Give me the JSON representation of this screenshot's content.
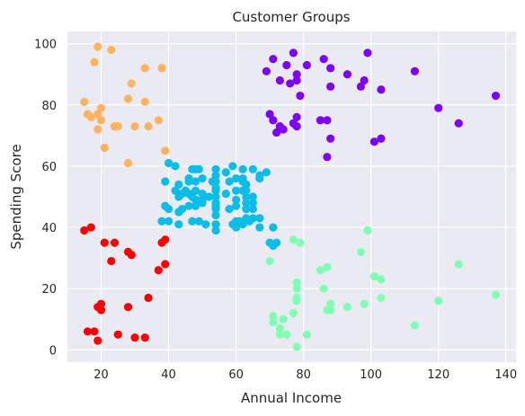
{
  "chart_data": {
    "type": "scatter",
    "title": "Customer Groups",
    "xlabel": "Annual Income",
    "ylabel": "Spending Score",
    "xlim": [
      10,
      143
    ],
    "ylim": [
      -4,
      104
    ],
    "xticks": [
      20,
      40,
      60,
      80,
      100,
      120,
      140
    ],
    "yticks": [
      0,
      20,
      40,
      60,
      80,
      100
    ],
    "grid": true,
    "background": "#eaeaf2",
    "clusters": [
      {
        "color": "#ffb360",
        "points": [
          [
            15,
            81
          ],
          [
            16,
            77
          ],
          [
            17,
            76
          ],
          [
            18,
            94
          ],
          [
            19,
            99
          ],
          [
            19,
            72
          ],
          [
            19,
            77
          ],
          [
            20,
            79
          ],
          [
            20,
            75
          ],
          [
            21,
            66
          ],
          [
            23,
            98
          ],
          [
            24,
            73
          ],
          [
            25,
            73
          ],
          [
            28,
            82
          ],
          [
            28,
            61
          ],
          [
            29,
            87
          ],
          [
            30,
            73
          ],
          [
            33,
            92
          ],
          [
            33,
            81
          ],
          [
            34,
            73
          ],
          [
            37,
            75
          ],
          [
            38,
            92
          ],
          [
            39,
            65
          ]
        ]
      },
      {
        "color": "#ff0000",
        "points": [
          [
            15,
            39
          ],
          [
            16,
            6
          ],
          [
            17,
            40
          ],
          [
            18,
            6
          ],
          [
            19,
            3
          ],
          [
            19,
            14
          ],
          [
            20,
            15
          ],
          [
            20,
            13
          ],
          [
            21,
            35
          ],
          [
            23,
            29
          ],
          [
            24,
            35
          ],
          [
            25,
            5
          ],
          [
            28,
            14
          ],
          [
            28,
            32
          ],
          [
            29,
            31
          ],
          [
            30,
            4
          ],
          [
            33,
            4
          ],
          [
            34,
            17
          ],
          [
            37,
            26
          ],
          [
            38,
            35
          ],
          [
            39,
            36
          ],
          [
            39,
            28
          ]
        ]
      },
      {
        "color": "#80ffb4",
        "points": [
          [
            70,
            29
          ],
          [
            71,
            11
          ],
          [
            71,
            9
          ],
          [
            73,
            5
          ],
          [
            73,
            7
          ],
          [
            74,
            10
          ],
          [
            75,
            5
          ],
          [
            77,
            12
          ],
          [
            77,
            36
          ],
          [
            78,
            1
          ],
          [
            78,
            22
          ],
          [
            78,
            20
          ],
          [
            78,
            17
          ],
          [
            78,
            16
          ],
          [
            79,
            35
          ],
          [
            81,
            5
          ],
          [
            85,
            26
          ],
          [
            86,
            20
          ],
          [
            87,
            27
          ],
          [
            87,
            13
          ],
          [
            88,
            15
          ],
          [
            88,
            13
          ],
          [
            93,
            14
          ],
          [
            97,
            32
          ],
          [
            98,
            15
          ],
          [
            99,
            39
          ],
          [
            101,
            24
          ],
          [
            103,
            17
          ],
          [
            103,
            23
          ],
          [
            113,
            8
          ],
          [
            120,
            16
          ],
          [
            126,
            28
          ],
          [
            137,
            18
          ]
        ]
      },
      {
        "color": "#8000ff",
        "points": [
          [
            69,
            91
          ],
          [
            70,
            77
          ],
          [
            71,
            95
          ],
          [
            71,
            75
          ],
          [
            72,
            71
          ],
          [
            73,
            88
          ],
          [
            73,
            73
          ],
          [
            74,
            72
          ],
          [
            75,
            93
          ],
          [
            76,
            87
          ],
          [
            77,
            97
          ],
          [
            77,
            74
          ],
          [
            78,
            90
          ],
          [
            78,
            76
          ],
          [
            78,
            88
          ],
          [
            78,
            73
          ],
          [
            79,
            83
          ],
          [
            81,
            93
          ],
          [
            85,
            75
          ],
          [
            86,
            95
          ],
          [
            87,
            75
          ],
          [
            87,
            63
          ],
          [
            88,
            92
          ],
          [
            88,
            86
          ],
          [
            88,
            69
          ],
          [
            93,
            90
          ],
          [
            97,
            86
          ],
          [
            98,
            88
          ],
          [
            99,
            97
          ],
          [
            101,
            68
          ],
          [
            103,
            85
          ],
          [
            103,
            69
          ],
          [
            113,
            91
          ],
          [
            120,
            79
          ],
          [
            126,
            74
          ],
          [
            137,
            83
          ]
        ]
      },
      {
        "color": "#0bbde7",
        "points": [
          [
            38,
            42
          ],
          [
            39,
            55
          ],
          [
            39,
            47
          ],
          [
            40,
            42
          ],
          [
            40,
            46
          ],
          [
            40,
            61
          ],
          [
            42,
            52
          ],
          [
            42,
            60
          ],
          [
            43,
            54
          ],
          [
            43,
            45
          ],
          [
            43,
            41
          ],
          [
            43,
            50
          ],
          [
            44,
            46
          ],
          [
            44,
            51
          ],
          [
            45,
            52
          ],
          [
            46,
            56
          ],
          [
            46,
            55
          ],
          [
            46,
            47
          ],
          [
            46,
            51
          ],
          [
            47,
            50
          ],
          [
            47,
            42
          ],
          [
            47,
            59
          ],
          [
            48,
            47
          ],
          [
            48,
            49
          ],
          [
            48,
            59
          ],
          [
            48,
            55
          ],
          [
            48,
            52
          ],
          [
            49,
            42
          ],
          [
            49,
            59
          ],
          [
            50,
            49
          ],
          [
            50,
            56
          ],
          [
            50,
            51
          ],
          [
            50,
            48
          ],
          [
            51,
            41
          ],
          [
            52,
            50
          ],
          [
            53,
            55
          ],
          [
            54,
            48
          ],
          [
            54,
            59
          ],
          [
            54,
            41
          ],
          [
            54,
            52
          ],
          [
            54,
            44
          ],
          [
            54,
            57
          ],
          [
            54,
            46
          ],
          [
            54,
            53
          ],
          [
            54,
            55
          ],
          [
            54,
            47
          ],
          [
            54,
            50
          ],
          [
            54,
            39
          ],
          [
            57,
            51
          ],
          [
            57,
            58
          ],
          [
            58,
            46
          ],
          [
            58,
            55
          ],
          [
            59,
            41
          ],
          [
            59,
            60
          ],
          [
            60,
            49
          ],
          [
            60,
            47
          ],
          [
            60,
            42
          ],
          [
            60,
            52
          ],
          [
            60,
            40
          ],
          [
            60,
            56
          ],
          [
            61,
            42
          ],
          [
            62,
            59
          ],
          [
            62,
            55
          ],
          [
            62,
            56
          ],
          [
            62,
            41
          ],
          [
            62,
            52
          ],
          [
            63,
            50
          ],
          [
            63,
            54
          ],
          [
            63,
            46
          ],
          [
            63,
            43
          ],
          [
            63,
            48
          ],
          [
            63,
            52
          ],
          [
            64,
            42
          ],
          [
            65,
            46
          ],
          [
            65,
            48
          ],
          [
            65,
            50
          ],
          [
            65,
            43
          ],
          [
            65,
            59
          ],
          [
            67,
            43
          ],
          [
            67,
            57
          ],
          [
            67,
            56
          ],
          [
            67,
            40
          ],
          [
            69,
            58
          ],
          [
            70,
            35
          ],
          [
            71,
            34
          ],
          [
            71,
            40
          ],
          [
            72,
            35
          ]
        ]
      }
    ]
  }
}
